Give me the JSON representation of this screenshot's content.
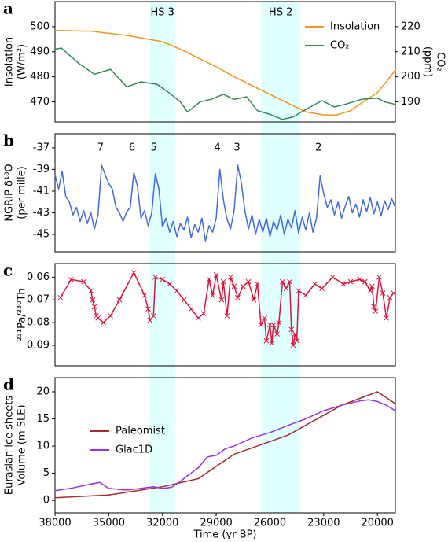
{
  "chart_data": [
    {
      "type": "line",
      "panel_label": "a",
      "xlim": [
        38000,
        19000
      ],
      "ylabel": [
        "Insolation",
        "(W/m²)"
      ],
      "ylim": [
        462,
        510
      ],
      "yticks": [
        470,
        480,
        490,
        500
      ],
      "y2label": [
        "CO₂",
        "(ppm)"
      ],
      "y2lim": [
        182,
        230
      ],
      "y2ticks": [
        190,
        200,
        210,
        220
      ],
      "legend": "upper right",
      "highlights": [
        {
          "label": "HS 3",
          "start": 32700,
          "end": 31300
        },
        {
          "label": "HS 2",
          "start": 26500,
          "end": 24300
        }
      ],
      "highlight_color": "#e0ffff",
      "series": [
        {
          "name": "Insolation",
          "color": "#f7931e",
          "x": [
            38000,
            36000,
            34000,
            32000,
            31000,
            30000,
            29000,
            28000,
            27000,
            26000,
            25000,
            24000,
            23000,
            22300,
            21500,
            21000,
            20000,
            19500,
            19000
          ],
          "values": [
            498.5,
            498.2,
            496.5,
            494,
            491,
            487.5,
            484,
            480,
            476.5,
            473,
            469.5,
            466,
            464.8,
            464.7,
            466.5,
            469,
            473.7,
            478,
            482.7
          ]
        },
        {
          "name": "CO₂",
          "color": "#2e8b57",
          "axis": "y2",
          "x": [
            38000,
            37650,
            36700,
            35800,
            34900,
            34000,
            33200,
            32300,
            31700,
            31000,
            30600,
            29900,
            29300,
            28600,
            28000,
            27300,
            26700,
            26000,
            25300,
            24700,
            24000,
            23100,
            22400,
            21800,
            20900,
            20000,
            19600,
            19000
          ],
          "values": [
            211,
            211.5,
            205.5,
            201,
            203,
            196,
            198,
            197,
            194,
            190,
            186,
            190,
            191,
            193,
            191,
            192,
            186.5,
            185,
            183,
            184,
            187,
            190.5,
            188,
            189,
            191,
            191.5,
            190,
            189
          ]
        }
      ]
    },
    {
      "type": "line",
      "panel_label": "b",
      "xlim": [
        38000,
        19000
      ],
      "ylabel": [
        "NGRIP δ¹⁸O",
        "(per mille)"
      ],
      "ylim": [
        -46.6,
        -35.7
      ],
      "yticks": [
        -45,
        -43,
        -41,
        -39,
        -37
      ],
      "annotations": [
        {
          "label": "7",
          "x": 35460
        },
        {
          "label": "6",
          "x": 33700
        },
        {
          "label": "5",
          "x": 32480
        },
        {
          "label": "4",
          "x": 28930
        },
        {
          "label": "3",
          "x": 27840
        },
        {
          "label": "2",
          "x": 23290
        }
      ],
      "series": [
        {
          "color": "#4169e1",
          "x": [
            38000,
            37800,
            37600,
            37400,
            37200,
            37000,
            36800,
            36600,
            36400,
            36200,
            36000,
            35800,
            35600,
            35400,
            35200,
            35000,
            34800,
            34600,
            34400,
            34200,
            34000,
            33800,
            33600,
            33400,
            33200,
            33000,
            32800,
            32600,
            32400,
            32200,
            32000,
            31800,
            31600,
            31400,
            31200,
            31000,
            30800,
            30600,
            30400,
            30200,
            30000,
            29800,
            29600,
            29400,
            29200,
            29000,
            28800,
            28600,
            28400,
            28200,
            28000,
            27800,
            27600,
            27400,
            27200,
            27000,
            26800,
            26600,
            26400,
            26200,
            26000,
            25800,
            25600,
            25400,
            25200,
            25000,
            24800,
            24600,
            24400,
            24200,
            24000,
            23800,
            23600,
            23400,
            23200,
            23000,
            22800,
            22600,
            22400,
            22200,
            22000,
            21800,
            21600,
            21400,
            21200,
            21000,
            20800,
            20600,
            20400,
            20200,
            20000,
            19800,
            19600,
            19400,
            19200,
            19000
          ],
          "values": [
            -39.5,
            -40.8,
            -39.2,
            -41.5,
            -42.0,
            -43.2,
            -42.5,
            -43.8,
            -42.8,
            -44.0,
            -43.0,
            -44.5,
            -43.2,
            -38.6,
            -39.5,
            -40.3,
            -40.8,
            -42.5,
            -43.0,
            -43.8,
            -42.9,
            -42.5,
            -39.3,
            -40.5,
            -43.5,
            -42.8,
            -44.2,
            -43.0,
            -39.4,
            -40.8,
            -44.3,
            -43.5,
            -44.8,
            -43.8,
            -45.2,
            -44.0,
            -44.6,
            -43.4,
            -45.3,
            -44.1,
            -44.8,
            -43.5,
            -45.6,
            -44.2,
            -44.8,
            -43.5,
            -39.0,
            -41.8,
            -43.6,
            -44.5,
            -42.8,
            -38.6,
            -40.2,
            -42.8,
            -44.5,
            -43.2,
            -45.0,
            -43.6,
            -44.8,
            -43.5,
            -45.2,
            -43.8,
            -44.6,
            -43.2,
            -45.0,
            -43.6,
            -44.4,
            -42.8,
            -44.9,
            -43.4,
            -44.6,
            -43.0,
            -44.8,
            -43.5,
            -39.6,
            -41.2,
            -42.5,
            -41.8,
            -43.2,
            -42.0,
            -43.5,
            -42.4,
            -41.5,
            -43.0,
            -42.2,
            -43.4,
            -41.8,
            -42.9,
            -41.6,
            -43.1,
            -42.0,
            -43.3,
            -41.9,
            -42.7,
            -41.7,
            -42.5
          ]
        }
      ]
    },
    {
      "type": "line",
      "panel_label": "c",
      "xlim": [
        38000,
        19000
      ],
      "ylabel": [
        "²³¹Pa/²³⁰Th"
      ],
      "ylim": [
        0.099,
        0.054
      ],
      "yticks": [
        0.06,
        0.07,
        0.08,
        0.09
      ],
      "series": [
        {
          "color": "#dc143c",
          "marker": "x",
          "x": [
            37700,
            37100,
            36400,
            36000,
            35900,
            35800,
            35700,
            35600,
            35300,
            34900,
            34400,
            33600,
            33000,
            32800,
            32700,
            32500,
            32400,
            32000,
            31600,
            31200,
            30800,
            30400,
            30000,
            29700,
            29400,
            29200,
            29000,
            28700,
            28600,
            28400,
            28200,
            28000,
            27800,
            27500,
            27200,
            26900,
            26700,
            26500,
            26300,
            26200,
            26000,
            25900,
            25800,
            25600,
            25500,
            25300,
            25100,
            24900,
            24800,
            24700,
            24600,
            24500,
            24400,
            24000,
            23500,
            23100,
            22500,
            21900,
            21500,
            21000,
            20700,
            20400,
            20300,
            20200,
            20100,
            19900,
            19700,
            19500,
            19300,
            19100
          ],
          "values": [
            0.069,
            0.061,
            0.062,
            0.066,
            0.07,
            0.073,
            0.077,
            0.078,
            0.08,
            0.077,
            0.07,
            0.058,
            0.068,
            0.074,
            0.079,
            0.077,
            0.06,
            0.061,
            0.063,
            0.066,
            0.07,
            0.074,
            0.078,
            0.076,
            0.061,
            0.068,
            0.059,
            0.07,
            0.062,
            0.077,
            0.06,
            0.064,
            0.069,
            0.064,
            0.062,
            0.07,
            0.063,
            0.081,
            0.078,
            0.088,
            0.081,
            0.089,
            0.081,
            0.085,
            0.08,
            0.062,
            0.065,
            0.062,
            0.083,
            0.09,
            0.085,
            0.088,
            0.066,
            0.068,
            0.063,
            0.065,
            0.06,
            0.063,
            0.062,
            0.061,
            0.062,
            0.066,
            0.064,
            0.073,
            0.075,
            0.06,
            0.067,
            0.078,
            0.069,
            0.067
          ]
        }
      ]
    },
    {
      "type": "line",
      "panel_label": "d",
      "xlim": [
        38000,
        19000
      ],
      "ylabel": [
        "Eurasian ice sheets",
        "Volume (m SLE)"
      ],
      "ylim": [
        -2.3,
        22.6
      ],
      "yticks": [
        0,
        5,
        10,
        15,
        20
      ],
      "xlabel": "Time (yr BP)",
      "xticks": [
        38000,
        35000,
        32000,
        29000,
        26000,
        23000,
        20000
      ],
      "legend": "center left",
      "series": [
        {
          "name": "Paleomist",
          "color": "#a52a2a",
          "x": [
            38000,
            35000,
            32000,
            30000,
            28000,
            25000,
            22000,
            20000,
            19000
          ],
          "values": [
            0.5,
            1.0,
            2.5,
            4,
            8.5,
            12,
            17.5,
            20,
            17.8
          ]
        },
        {
          "name": "Glac1D",
          "color": "#9b30e0",
          "x": [
            38000,
            37000,
            36000,
            35500,
            35000,
            34000,
            33000,
            32500,
            32000,
            31500,
            31000,
            30500,
            30000,
            29500,
            29000,
            28500,
            28000,
            27000,
            26000,
            25000,
            24000,
            23000,
            22000,
            21000,
            20500,
            20000,
            19500,
            19000
          ],
          "values": [
            1.8,
            2.3,
            3.0,
            3.3,
            2.2,
            1.9,
            2.3,
            2.5,
            2.2,
            2.4,
            3.5,
            4.8,
            6.0,
            8.0,
            8.3,
            9.5,
            10.0,
            11.5,
            12.5,
            13.8,
            15.0,
            16.5,
            17.5,
            18.3,
            18.5,
            18.2,
            17.5,
            16.5
          ]
        }
      ]
    }
  ]
}
